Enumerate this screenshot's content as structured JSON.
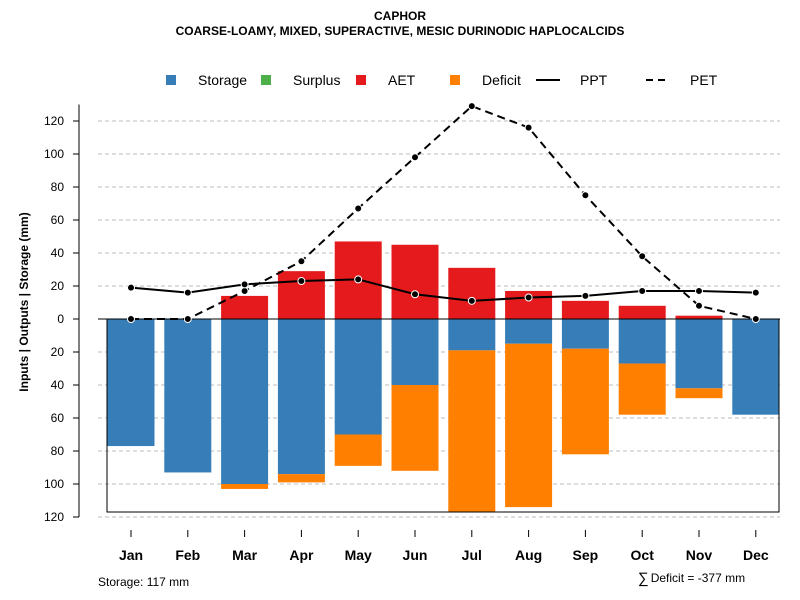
{
  "header": {
    "title": "CAPHOR",
    "subtitle": "COARSE-LOAMY, MIXED, SUPERACTIVE, MESIC DURINODIC HAPLOCALCIDS"
  },
  "footer": {
    "storage_note": "Storage: 117 mm",
    "deficit_note": "Deficit = -377 mm",
    "deficit_symbol": "∑"
  },
  "colors": {
    "storage": "#377eb8",
    "surplus": "#4daf4a",
    "aet": "#e41a1c",
    "deficit": "#ff7f00",
    "line": "#000000",
    "grid": "#bdbdbd"
  },
  "chart_data": {
    "type": "bar",
    "title": "CAPHOR",
    "subtitle": "COARSE-LOAMY, MIXED, SUPERACTIVE, MESIC DURINODIC HAPLOCALCIDS",
    "ylabel": "Inputs | Outputs | Storage    (mm)",
    "xlabel": "",
    "ylim": [
      -120,
      130
    ],
    "yticks": [
      120,
      100,
      80,
      60,
      40,
      20,
      0,
      20,
      40,
      60,
      80,
      100,
      120
    ],
    "ytick_values": [
      120,
      100,
      80,
      60,
      40,
      20,
      0,
      -20,
      -40,
      -60,
      -80,
      -100,
      -120
    ],
    "grid": true,
    "legend_position": "top",
    "legend": [
      {
        "label": "Storage",
        "kind": "box",
        "color": "#377eb8"
      },
      {
        "label": "Surplus",
        "kind": "box",
        "color": "#4daf4a"
      },
      {
        "label": "AET",
        "kind": "box",
        "color": "#e41a1c"
      },
      {
        "label": "Deficit",
        "kind": "box",
        "color": "#ff7f00"
      },
      {
        "label": "PPT",
        "kind": "solid"
      },
      {
        "label": "PET",
        "kind": "dashed"
      }
    ],
    "categories": [
      "Jan",
      "Feb",
      "Mar",
      "Apr",
      "May",
      "Jun",
      "Jul",
      "Aug",
      "Sep",
      "Oct",
      "Nov",
      "Dec"
    ],
    "storage_capacity": 117,
    "series": [
      {
        "name": "AET",
        "values": [
          0,
          0,
          14,
          29,
          47,
          45,
          31,
          17,
          11,
          8,
          2,
          0
        ]
      },
      {
        "name": "Storage",
        "values": [
          77,
          93,
          100,
          94,
          70,
          40,
          19,
          15,
          18,
          27,
          42,
          58
        ]
      },
      {
        "name": "Deficit",
        "values": [
          0,
          0,
          3,
          5,
          19,
          52,
          98,
          99,
          64,
          31,
          6,
          0
        ]
      },
      {
        "name": "Surplus",
        "values": [
          0,
          0,
          0,
          0,
          0,
          0,
          0,
          0,
          0,
          0,
          0,
          0
        ]
      },
      {
        "name": "PPT",
        "values": [
          19,
          16,
          21,
          23,
          24,
          15,
          11,
          13,
          14,
          17,
          17,
          16
        ]
      },
      {
        "name": "PET",
        "values": [
          0,
          0,
          17,
          35,
          67,
          98,
          129,
          116,
          75,
          38,
          8,
          0
        ]
      }
    ]
  }
}
